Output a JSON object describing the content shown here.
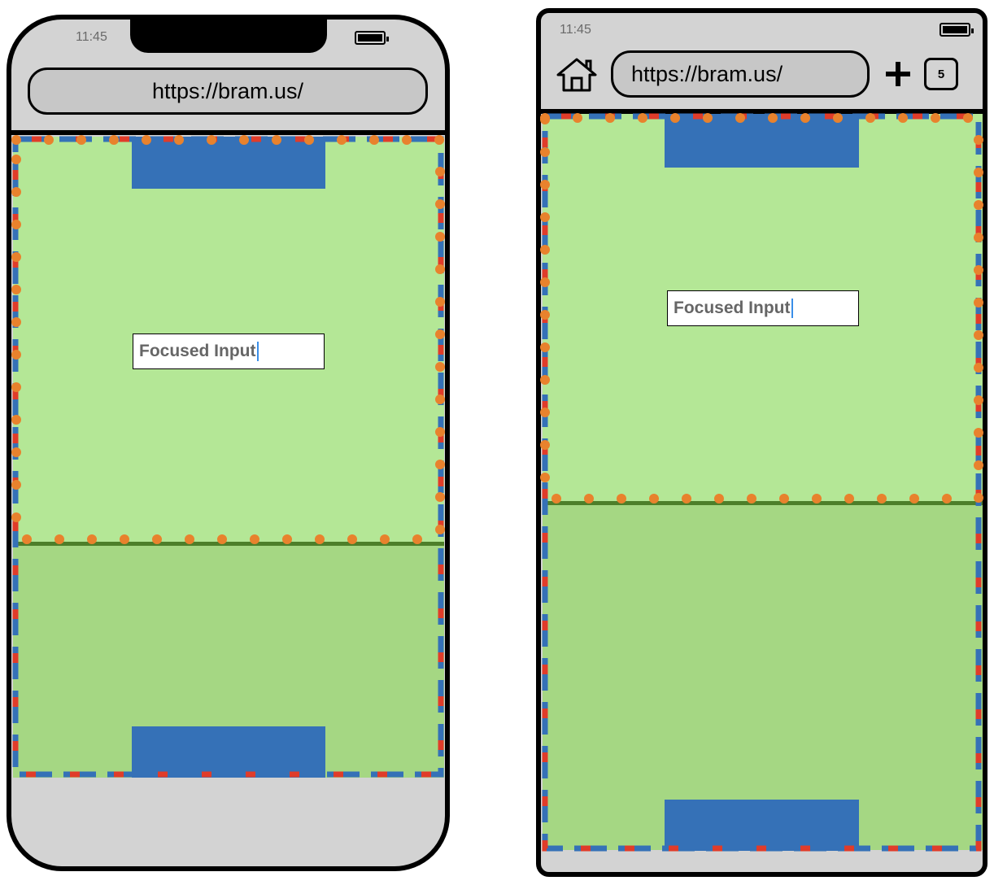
{
  "phone_left": {
    "status_time": "11:45",
    "url": "https://bram.us/",
    "input_value": "Focused Input"
  },
  "phone_right": {
    "status_time": "11:45",
    "url": "https://bram.us/",
    "input_value": "Focused Input",
    "tab_count": "5",
    "icons": [
      "home-icon",
      "plus-icon",
      "tabs-icon",
      "battery-icon"
    ]
  },
  "colors": {
    "layout_viewport": "#3571b7",
    "visual_viewport": "#e03c2a",
    "content_outline": "#e8822d",
    "page_green": "#b4e796",
    "page_green_dark": "#a5d783"
  }
}
